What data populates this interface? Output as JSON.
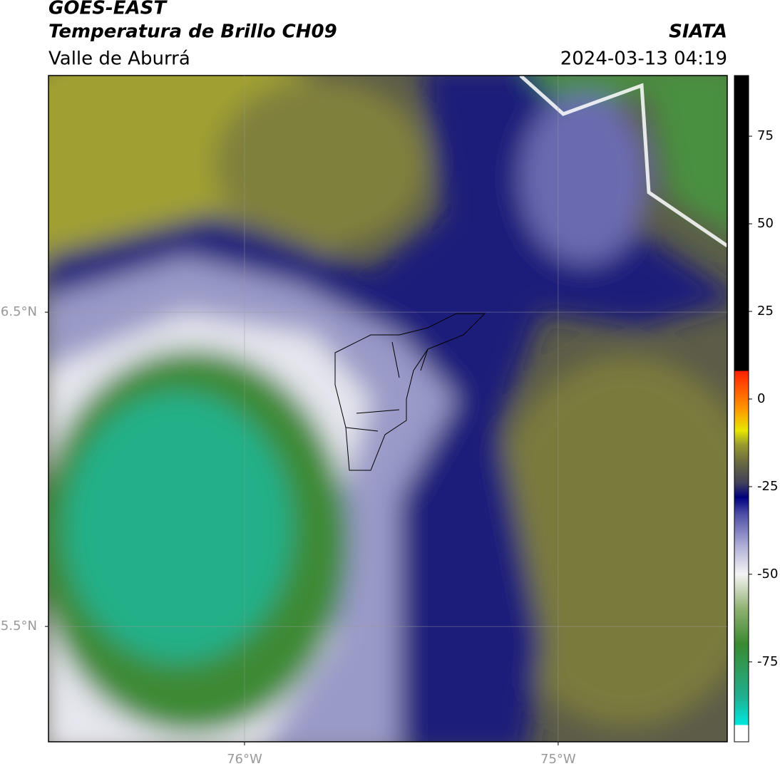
{
  "header": {
    "title": "GOES-EAST",
    "subtitle": "Temperatura de Brillo CH09",
    "region": "Valle de Aburrá",
    "source": "SIATA",
    "timestamp": "2024-03-13 04:19"
  },
  "map": {
    "xlim": [
      -76.625,
      -74.461
    ],
    "ylim": [
      5.133,
      7.253
    ],
    "xticks": [
      {
        "value": -76,
        "label": "76°W"
      },
      {
        "value": -75,
        "label": "75°W"
      }
    ],
    "yticks": [
      {
        "value": 6.5,
        "label": "6.5°N"
      },
      {
        "value": 5.5,
        "label": "5.5°N"
      }
    ],
    "grid": true
  },
  "colorbar": {
    "lim": [
      -97.8,
      92.3
    ],
    "ticks": [
      75,
      50,
      25,
      0,
      -25,
      -50,
      -75
    ],
    "stops": [
      {
        "value": -93,
        "color": "#ffffff"
      },
      {
        "value": -93,
        "color": "#00e8e0"
      },
      {
        "value": -85,
        "color": "#20b090"
      },
      {
        "value": -70,
        "color": "#3a8a30"
      },
      {
        "value": -60,
        "color": "#8fb070"
      },
      {
        "value": -50,
        "color": "#f4f4f4"
      },
      {
        "value": -42,
        "color": "#b0b0d8"
      },
      {
        "value": -33,
        "color": "#5050a8"
      },
      {
        "value": -28,
        "color": "#00007f"
      },
      {
        "value": -24,
        "color": "#40405a"
      },
      {
        "value": -18,
        "color": "#6a6a40"
      },
      {
        "value": -13,
        "color": "#9a9a30"
      },
      {
        "value": -9,
        "color": "#e8e800"
      },
      {
        "value": -3,
        "color": "#ff9900"
      },
      {
        "value": 8,
        "color": "#ff2000"
      },
      {
        "value": 8,
        "color": "#000000"
      }
    ]
  }
}
